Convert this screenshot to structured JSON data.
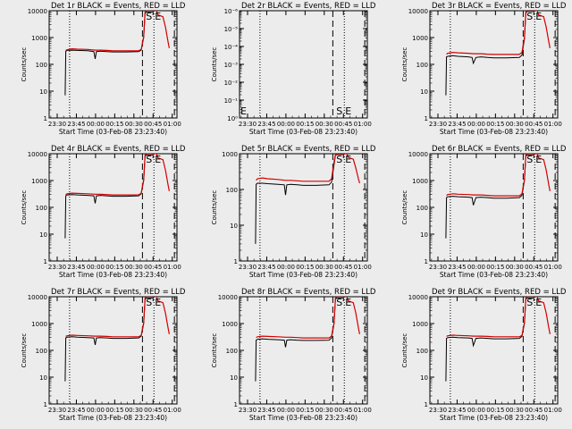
{
  "chart_data": [
    {
      "type": "line",
      "title": "Det 1r BLACK = Events, RED = LLD",
      "xlabel": "Start Time (03-Feb-08 23:23:40)",
      "ylabel": "Counts/sec",
      "x_tick_labels": [
        "23:30",
        "23:45",
        "00:00",
        "00:15",
        "00:30",
        "00:45",
        "01:00"
      ],
      "xlim_minutes": [
        0,
        100
      ],
      "ylim": [
        1,
        10000
      ],
      "y_scale": "log",
      "y_tick_labels": [
        "1",
        "10",
        "100",
        "1000",
        "10000"
      ],
      "markers": [
        "S",
        "E"
      ],
      "series": [
        {
          "color": "#000000",
          "x": [
            12.5,
            13,
            14,
            18,
            22,
            30,
            35,
            36,
            37,
            40,
            45,
            50,
            60,
            70,
            72,
            74,
            75,
            76,
            79,
            81
          ],
          "y": [
            7,
            310,
            330,
            340,
            330,
            320,
            300,
            160,
            300,
            310,
            300,
            290,
            290,
            300,
            340,
            1000,
            8000,
            9000,
            9000,
            9000
          ]
        },
        {
          "color": "#d40000",
          "x": [
            13,
            14,
            18,
            22,
            30,
            36,
            40,
            45,
            50,
            60,
            70,
            72,
            74,
            75,
            76,
            80,
            84,
            85,
            89,
            91,
            93,
            94
          ],
          "y": [
            330,
            350,
            380,
            370,
            360,
            340,
            340,
            330,
            320,
            320,
            320,
            360,
            1100,
            9000,
            10000,
            10000,
            10000,
            7000,
            6000,
            2500,
            700,
            400
          ]
        }
      ]
    },
    {
      "type": "line",
      "title": "Det 2r BLACK = Events, RED = LLD",
      "xlabel": "Start Time (03-Feb-08 23:23:40)",
      "ylabel": "Counts/sec",
      "x_tick_labels": [
        "23:30",
        "23:45",
        "00:00",
        "00:15",
        "00:30",
        "00:45",
        "01:00"
      ],
      "xlim_minutes": [
        0,
        100
      ],
      "ylim": [
        1,
        1e-06
      ],
      "y_scale": "log",
      "y_tick_labels": [
        "10⁰",
        "10⁻¹",
        "10⁻²",
        "10⁻³",
        "10⁻⁴",
        "10⁻⁵",
        "10⁻⁶"
      ],
      "markers": [
        "S",
        "E"
      ],
      "series": []
    },
    {
      "type": "line",
      "title": "Det 3r BLACK = Events, RED = LLD",
      "xlabel": "Start Time (03-Feb-08 23:23:40)",
      "ylabel": "Counts/sec",
      "x_tick_labels": [
        "23:30",
        "23:45",
        "00:00",
        "00:15",
        "00:30",
        "00:45",
        "01:00"
      ],
      "xlim_minutes": [
        0,
        100
      ],
      "ylim": [
        1,
        10000
      ],
      "y_scale": "log",
      "y_tick_labels": [
        "1",
        "10",
        "100",
        "1000",
        "10000"
      ],
      "markers": [
        "S",
        "E"
      ],
      "series": [
        {
          "color": "#000000",
          "x": [
            12.5,
            13,
            14,
            18,
            22,
            30,
            33,
            34,
            36,
            40,
            45,
            50,
            60,
            70,
            72,
            74,
            75,
            76,
            79,
            81
          ],
          "y": [
            7,
            190,
            200,
            210,
            200,
            190,
            180,
            110,
            180,
            190,
            180,
            175,
            175,
            180,
            220,
            900,
            8000,
            9500,
            9500,
            9500
          ]
        },
        {
          "color": "#d40000",
          "x": [
            13,
            14,
            18,
            22,
            30,
            34,
            40,
            45,
            50,
            60,
            70,
            72,
            74,
            75,
            76,
            80,
            84,
            85,
            89,
            91,
            93,
            94
          ],
          "y": [
            240,
            260,
            280,
            270,
            260,
            250,
            250,
            240,
            235,
            235,
            235,
            280,
            1000,
            9000,
            10000,
            10000,
            10000,
            7000,
            6000,
            2500,
            700,
            400
          ]
        }
      ]
    },
    {
      "type": "line",
      "title": "Det 4r BLACK = Events, RED = LLD",
      "xlabel": "Start Time (03-Feb-08 23:23:40)",
      "ylabel": "Counts/sec",
      "x_tick_labels": [
        "23:30",
        "23:45",
        "00:00",
        "00:15",
        "00:30",
        "00:45",
        "01:00"
      ],
      "xlim_minutes": [
        0,
        100
      ],
      "ylim": [
        1,
        10000
      ],
      "y_scale": "log",
      "y_tick_labels": [
        "1",
        "10",
        "100",
        "1000",
        "10000"
      ],
      "markers": [
        "S",
        "E"
      ],
      "series": [
        {
          "color": "#000000",
          "x": [
            12.5,
            13,
            14,
            18,
            22,
            30,
            35,
            36,
            37,
            40,
            45,
            50,
            60,
            70,
            72,
            74,
            75,
            76,
            79,
            81
          ],
          "y": [
            7,
            270,
            290,
            300,
            290,
            280,
            270,
            140,
            270,
            280,
            270,
            260,
            260,
            270,
            320,
            1000,
            8000,
            9000,
            9000,
            9000
          ]
        },
        {
          "color": "#d40000",
          "x": [
            13,
            14,
            18,
            22,
            30,
            36,
            40,
            45,
            50,
            60,
            70,
            72,
            74,
            75,
            76,
            80,
            84,
            85,
            89,
            91,
            93,
            94
          ],
          "y": [
            300,
            320,
            340,
            330,
            320,
            310,
            310,
            300,
            290,
            290,
            290,
            340,
            1100,
            9000,
            10000,
            10000,
            10000,
            7000,
            6000,
            2500,
            700,
            400
          ]
        }
      ]
    },
    {
      "type": "line",
      "title": "Det 5r BLACK = Events, RED = LLD",
      "xlabel": "Start Time (03-Feb-08 23:23:40)",
      "ylabel": "Counts/sec",
      "x_tick_labels": [
        "23:30",
        "23:45",
        "00:00",
        "00:15",
        "00:30",
        "00:45",
        "01:00"
      ],
      "xlim_minutes": [
        0,
        100
      ],
      "ylim": [
        1,
        1000
      ],
      "y_scale": "log",
      "y_tick_labels": [
        "1",
        "10",
        "100",
        "1000"
      ],
      "markers": [
        "S",
        "E"
      ],
      "series": [
        {
          "color": "#000000",
          "x": [
            12.5,
            13,
            14,
            18,
            22,
            30,
            35,
            36,
            37,
            40,
            45,
            50,
            60,
            70,
            72,
            74,
            75,
            76,
            79,
            81
          ],
          "y": [
            3,
            140,
            150,
            150,
            145,
            140,
            135,
            70,
            135,
            140,
            135,
            130,
            130,
            135,
            160,
            500,
            900,
            950,
            950,
            950
          ]
        },
        {
          "color": "#d40000",
          "x": [
            13,
            14,
            18,
            22,
            30,
            36,
            40,
            45,
            50,
            60,
            70,
            72,
            74,
            75,
            76,
            80,
            84,
            85,
            89,
            91,
            93,
            94
          ],
          "y": [
            180,
            200,
            210,
            200,
            190,
            180,
            180,
            175,
            170,
            170,
            170,
            200,
            600,
            950,
            1000,
            1000,
            1000,
            800,
            700,
            400,
            200,
            150
          ]
        }
      ]
    },
    {
      "type": "line",
      "title": "Det 6r BLACK = Events, RED = LLD",
      "xlabel": "Start Time (03-Feb-08 23:23:40)",
      "ylabel": "Counts/sec",
      "x_tick_labels": [
        "23:30",
        "23:45",
        "00:00",
        "00:15",
        "00:30",
        "00:45",
        "01:00"
      ],
      "xlim_minutes": [
        0,
        100
      ],
      "ylim": [
        1,
        10000
      ],
      "y_scale": "log",
      "y_tick_labels": [
        "1",
        "10",
        "100",
        "1000",
        "10000"
      ],
      "markers": [
        "S",
        "E"
      ],
      "series": [
        {
          "color": "#000000",
          "x": [
            12.5,
            13,
            14,
            18,
            22,
            30,
            33,
            34,
            36,
            40,
            45,
            50,
            60,
            70,
            72,
            74,
            75,
            76,
            79,
            81
          ],
          "y": [
            7,
            230,
            250,
            260,
            250,
            240,
            230,
            120,
            230,
            240,
            230,
            220,
            220,
            230,
            280,
            1000,
            8000,
            9000,
            9000,
            9000
          ]
        },
        {
          "color": "#d40000",
          "x": [
            13,
            14,
            18,
            22,
            30,
            34,
            40,
            45,
            50,
            60,
            70,
            72,
            74,
            75,
            76,
            80,
            84,
            85,
            89,
            91,
            93,
            94
          ],
          "y": [
            280,
            300,
            320,
            310,
            300,
            290,
            290,
            280,
            270,
            270,
            270,
            320,
            1100,
            9000,
            10000,
            10000,
            10000,
            7000,
            6000,
            2500,
            700,
            400
          ]
        }
      ]
    },
    {
      "type": "line",
      "title": "Det 7r BLACK = Events, RED = LLD",
      "xlabel": "Start Time (03-Feb-08 23:23:40)",
      "ylabel": "Counts/sec",
      "x_tick_labels": [
        "23:30",
        "23:45",
        "00:00",
        "00:15",
        "00:30",
        "00:45",
        "01:00"
      ],
      "xlim_minutes": [
        0,
        100
      ],
      "ylim": [
        1,
        10000
      ],
      "y_scale": "log",
      "y_tick_labels": [
        "1",
        "10",
        "100",
        "1000",
        "10000"
      ],
      "markers": [
        "S",
        "E"
      ],
      "series": [
        {
          "color": "#000000",
          "x": [
            12.5,
            13,
            14,
            18,
            22,
            30,
            35,
            36,
            37,
            40,
            45,
            50,
            60,
            70,
            72,
            74,
            75,
            76,
            79,
            81
          ],
          "y": [
            7,
            290,
            310,
            320,
            310,
            300,
            290,
            160,
            290,
            300,
            290,
            280,
            280,
            290,
            340,
            1000,
            8000,
            9000,
            9000,
            9000
          ]
        },
        {
          "color": "#d40000",
          "x": [
            13,
            14,
            18,
            22,
            30,
            36,
            40,
            45,
            50,
            60,
            70,
            72,
            74,
            75,
            76,
            80,
            84,
            85,
            89,
            91,
            93,
            94
          ],
          "y": [
            330,
            350,
            370,
            360,
            350,
            340,
            340,
            330,
            320,
            320,
            320,
            360,
            1100,
            9000,
            10000,
            10000,
            10000,
            7000,
            6000,
            2500,
            700,
            400
          ]
        }
      ]
    },
    {
      "type": "line",
      "title": "Det 8r BLACK = Events, RED = LLD",
      "xlabel": "Start Time (03-Feb-08 23:23:40)",
      "ylabel": "Counts/sec",
      "x_tick_labels": [
        "23:30",
        "23:45",
        "00:00",
        "00:15",
        "00:30",
        "00:45",
        "01:00"
      ],
      "xlim_minutes": [
        0,
        100
      ],
      "ylim": [
        1,
        10000
      ],
      "y_scale": "log",
      "y_tick_labels": [
        "1",
        "10",
        "100",
        "1000",
        "10000"
      ],
      "markers": [
        "S",
        "E"
      ],
      "series": [
        {
          "color": "#000000",
          "x": [
            12.5,
            13,
            14,
            18,
            22,
            30,
            35,
            36,
            37,
            40,
            45,
            50,
            60,
            70,
            72,
            74,
            75,
            76,
            79,
            81
          ],
          "y": [
            7,
            240,
            260,
            270,
            260,
            250,
            240,
            130,
            240,
            250,
            240,
            235,
            235,
            240,
            290,
            1000,
            8000,
            9000,
            9000,
            9000
          ]
        },
        {
          "color": "#d40000",
          "x": [
            13,
            14,
            18,
            22,
            30,
            36,
            40,
            45,
            50,
            60,
            70,
            72,
            74,
            75,
            76,
            80,
            84,
            85,
            89,
            91,
            93,
            94
          ],
          "y": [
            300,
            320,
            340,
            330,
            320,
            310,
            310,
            300,
            290,
            290,
            290,
            340,
            1100,
            9000,
            10000,
            10000,
            10000,
            7000,
            6000,
            2500,
            700,
            400
          ]
        }
      ]
    },
    {
      "type": "line",
      "title": "Det 9r BLACK = Events, RED = LLD",
      "xlabel": "Start Time (03-Feb-08 23:23:40)",
      "ylabel": "Counts/sec",
      "x_tick_labels": [
        "23:30",
        "23:45",
        "00:00",
        "00:15",
        "00:30",
        "00:45",
        "01:00"
      ],
      "xlim_minutes": [
        0,
        100
      ],
      "ylim": [
        1,
        10000
      ],
      "y_scale": "log",
      "y_tick_labels": [
        "1",
        "10",
        "100",
        "1000",
        "10000"
      ],
      "markers": [
        "S",
        "E"
      ],
      "series": [
        {
          "color": "#000000",
          "x": [
            12.5,
            13,
            14,
            18,
            22,
            30,
            33,
            34,
            36,
            40,
            45,
            50,
            60,
            70,
            72,
            74,
            75,
            76,
            79,
            81
          ],
          "y": [
            7,
            280,
            300,
            310,
            300,
            290,
            280,
            150,
            280,
            290,
            280,
            270,
            270,
            280,
            330,
            1000,
            8000,
            9000,
            9000,
            9000
          ]
        },
        {
          "color": "#d40000",
          "x": [
            13,
            14,
            18,
            22,
            30,
            34,
            40,
            45,
            50,
            60,
            70,
            72,
            74,
            75,
            76,
            80,
            84,
            85,
            89,
            91,
            93,
            94
          ],
          "y": [
            330,
            350,
            370,
            360,
            350,
            340,
            340,
            330,
            320,
            320,
            320,
            360,
            1100,
            9000,
            10000,
            10000,
            10000,
            7000,
            6000,
            2500,
            700,
            400
          ]
        }
      ]
    }
  ]
}
